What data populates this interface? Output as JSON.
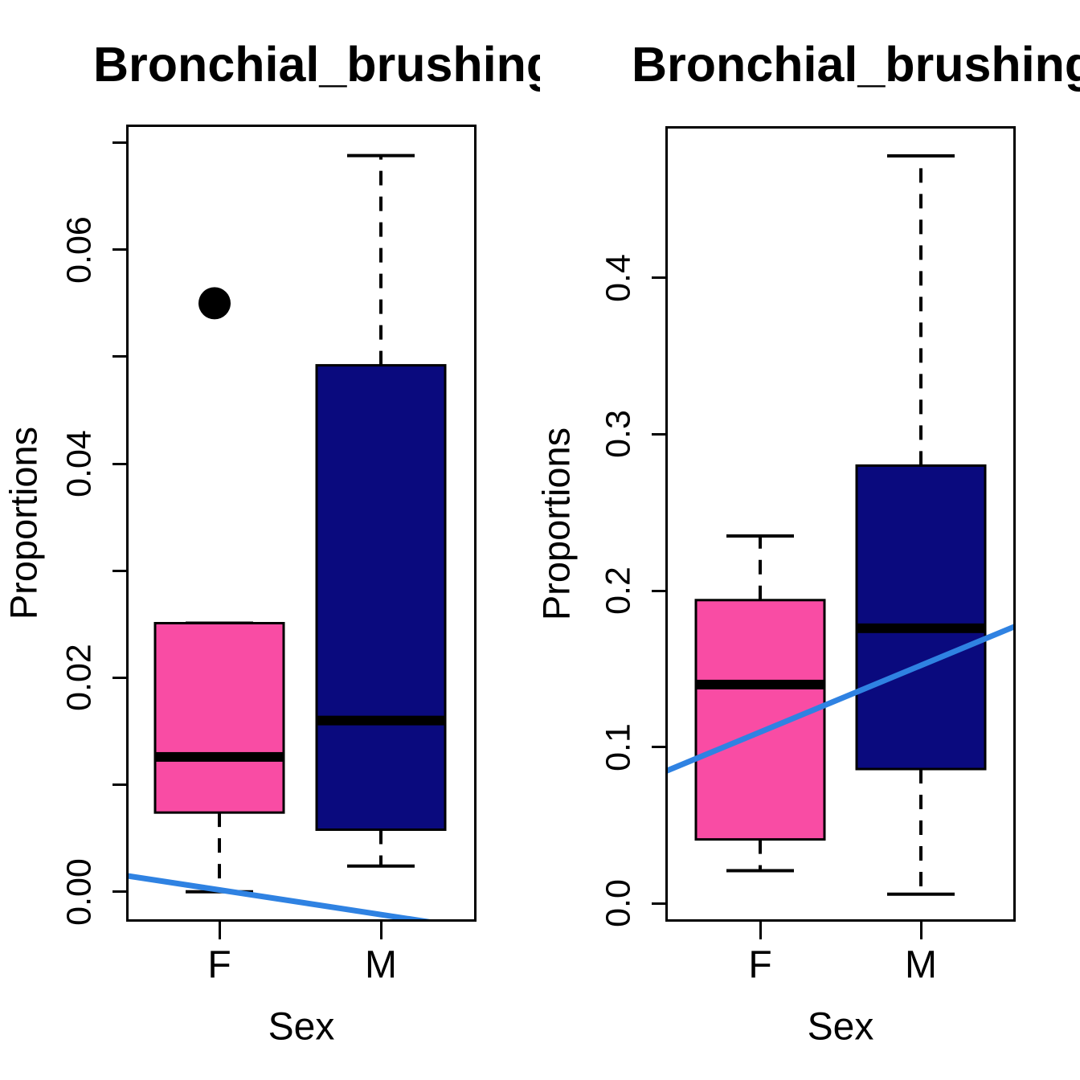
{
  "figure": {
    "background": "#FFFFFF"
  },
  "colors": {
    "female_box": "#F94CA4",
    "male_box": "#0A0A7E",
    "trend_line": "#2F82E2",
    "outlier": "#000000",
    "median": "#000000",
    "axis": "#000000"
  },
  "chart_data": [
    {
      "type": "boxplot",
      "panel": "left",
      "title": "Bronchial_brushing",
      "title_visible": "Bronchial_brushi",
      "xlabel": "Sex",
      "ylabel": "Proportions",
      "categories": [
        "F",
        "M"
      ],
      "ylim": [
        -0.0028,
        0.0717
      ],
      "grid": false,
      "y_ticks": [
        {
          "v": 0.0,
          "label": "0.00"
        },
        {
          "v": 0.01,
          "label": ""
        },
        {
          "v": 0.02,
          "label": "0.02"
        },
        {
          "v": 0.03,
          "label": ""
        },
        {
          "v": 0.04,
          "label": "0.04"
        },
        {
          "v": 0.05,
          "label": ""
        },
        {
          "v": 0.06,
          "label": "0.06"
        },
        {
          "v": 0.07,
          "label": ""
        }
      ],
      "boxes": [
        {
          "category": "F",
          "color": "female_box",
          "q1": 0.0074,
          "median": 0.0126,
          "q3": 0.0251,
          "whisker_low": 0.0,
          "whisker_high": 0.0251,
          "outliers": [
            0.055
          ]
        },
        {
          "category": "M",
          "color": "male_box",
          "q1": 0.0058,
          "median": 0.016,
          "q3": 0.0492,
          "whisker_low": 0.0024,
          "whisker_high": 0.0688,
          "outliers": []
        }
      ],
      "trend_line": {
        "value_at_left": 0.0015,
        "value_at_right": -0.0035
      }
    },
    {
      "type": "boxplot",
      "panel": "right",
      "title": "Bronchial_brushing",
      "title_visible": "Bronchial_brushi",
      "xlabel": "Sex",
      "ylabel": "Proportions",
      "categories": [
        "F",
        "M"
      ],
      "ylim": [
        -0.0116,
        0.497
      ],
      "grid": false,
      "y_ticks": [
        {
          "v": 0.0,
          "label": "0.0"
        },
        {
          "v": 0.1,
          "label": "0.1"
        },
        {
          "v": 0.2,
          "label": "0.2"
        },
        {
          "v": 0.3,
          "label": "0.3"
        },
        {
          "v": 0.4,
          "label": "0.4"
        }
      ],
      "boxes": [
        {
          "category": "F",
          "color": "female_box",
          "q1": 0.041,
          "median": 0.14,
          "q3": 0.194,
          "whisker_low": 0.021,
          "whisker_high": 0.235,
          "outliers": []
        },
        {
          "category": "M",
          "color": "male_box",
          "q1": 0.086,
          "median": 0.176,
          "q3": 0.28,
          "whisker_low": 0.006,
          "whisker_high": 0.478,
          "outliers": []
        }
      ],
      "trend_line": {
        "value_at_left": 0.0845,
        "value_at_right": 0.1774
      }
    }
  ]
}
